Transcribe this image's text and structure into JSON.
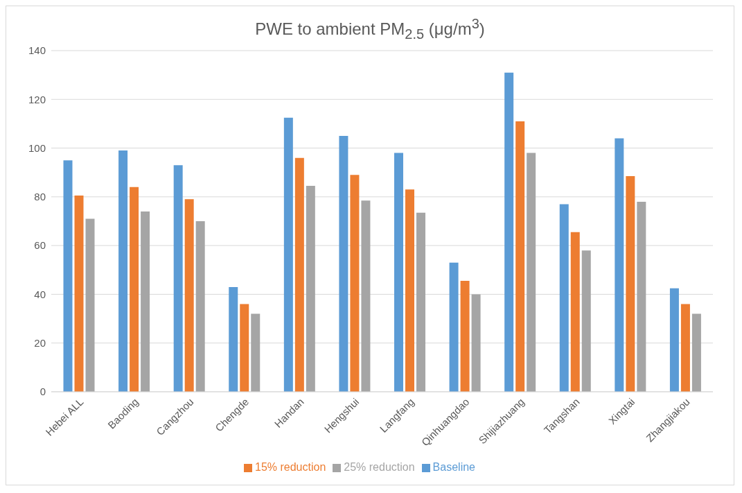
{
  "chart_data": {
    "type": "bar",
    "title": "PWE to ambient PM$_{2.5}$ (μg/m$^{3}$)",
    "categories": [
      "Hebei ALL",
      "Baoding",
      "Cangzhou",
      "Chengde",
      "Handan",
      "Hengshui",
      "Langfang",
      "Qinhuangdao",
      "Shijiazhuang",
      "Tangshan",
      "Xingtai",
      "Zhangjiakou"
    ],
    "series": [
      {
        "name": "Baseline",
        "color": "#5b9bd5",
        "values": [
          95,
          99,
          93,
          43,
          112.5,
          105,
          98,
          53,
          131,
          77,
          104,
          42.5
        ]
      },
      {
        "name": "15% reduction",
        "color": "#ed7d31",
        "values": [
          80.5,
          84,
          79,
          36,
          96,
          89,
          83,
          45.5,
          111,
          65.5,
          88.5,
          36
        ]
      },
      {
        "name": "25% reduction",
        "color": "#a5a5a5",
        "values": [
          71,
          74,
          70,
          32,
          84.5,
          78.5,
          73.5,
          40,
          98,
          58,
          78,
          32
        ]
      }
    ],
    "ylim": [
      0,
      140
    ],
    "yticks": [
      0,
      20,
      40,
      60,
      80,
      100,
      120,
      140
    ],
    "grid": "y",
    "legend": "bottom"
  }
}
